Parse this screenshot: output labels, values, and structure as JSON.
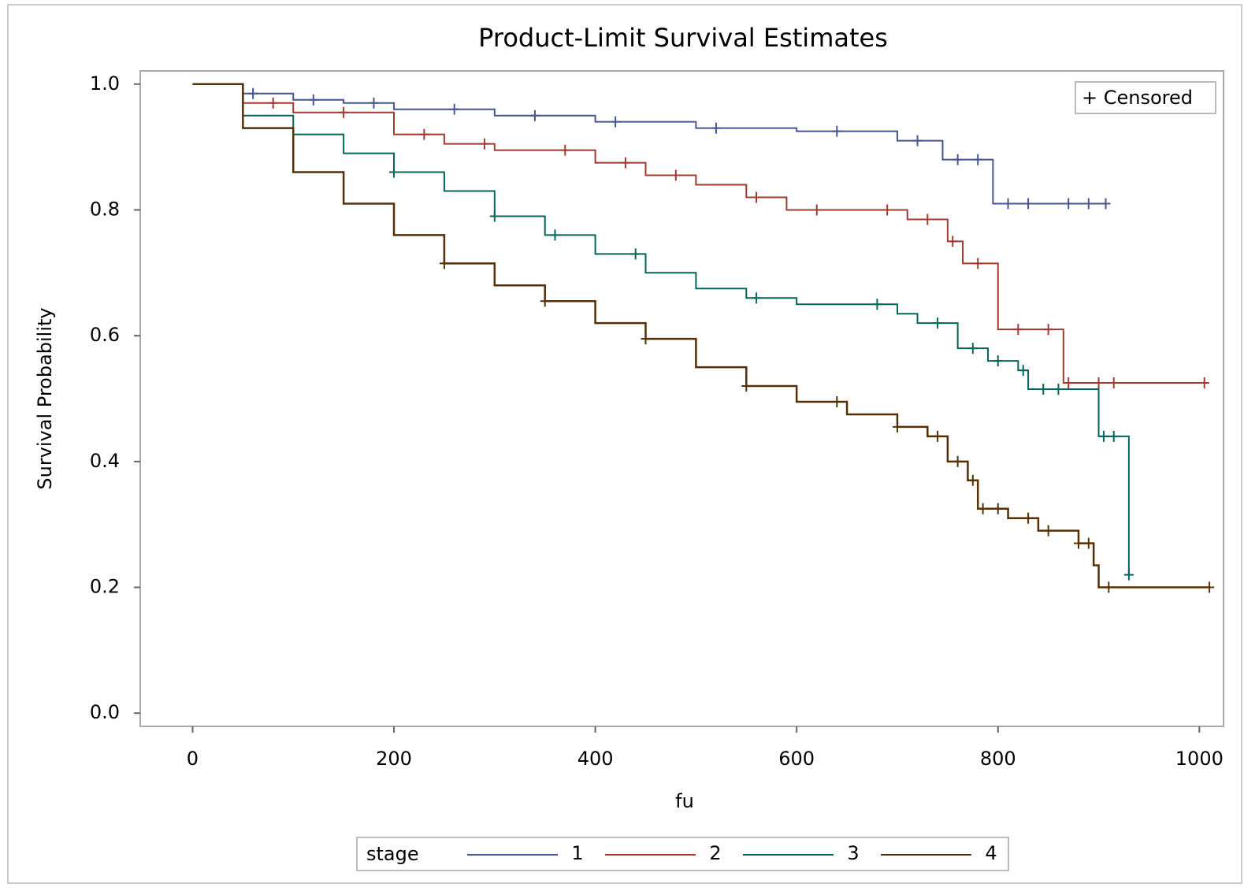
{
  "chart_data": {
    "type": "step-survival",
    "title": "Product-Limit Survival Estimates",
    "x_label": "fu",
    "y_label": "Survival Probability",
    "xlim": [
      -52,
      1024
    ],
    "ylim": [
      -0.021,
      1.021
    ],
    "xticks": [
      0,
      200,
      400,
      600,
      800,
      1000
    ],
    "yticks": [
      {
        "value": 0,
        "label": "0.0"
      },
      {
        "value": 0.2,
        "label": "0.2"
      },
      {
        "value": 0.4,
        "label": "0.4"
      },
      {
        "value": 0.6,
        "label": "0.6"
      },
      {
        "value": 0.8,
        "label": "0.8"
      },
      {
        "value": 1,
        "label": "1.0"
      }
    ],
    "censor_legend": "+ Censored",
    "legend_title": "stage",
    "series": [
      {
        "name": "1",
        "color": "#445694",
        "x": [
          0,
          50,
          100,
          150,
          200,
          300,
          400,
          500,
          600,
          700,
          745,
          795,
          907
        ],
        "values": [
          1.0,
          0.985,
          0.975,
          0.97,
          0.96,
          0.95,
          0.94,
          0.93,
          0.925,
          0.91,
          0.88,
          0.81,
          0.81
        ],
        "censored_x": [
          60,
          120,
          180,
          260,
          340,
          420,
          520,
          640,
          720,
          760,
          780,
          810,
          830,
          870,
          890,
          907
        ]
      },
      {
        "name": "2",
        "color": "#a23a2e",
        "x": [
          0,
          50,
          100,
          200,
          250,
          300,
          400,
          450,
          500,
          550,
          590,
          710,
          750,
          765,
          800,
          865,
          1005
        ],
        "values": [
          1.0,
          0.97,
          0.955,
          0.92,
          0.905,
          0.895,
          0.875,
          0.855,
          0.84,
          0.82,
          0.8,
          0.785,
          0.75,
          0.715,
          0.61,
          0.525,
          0.525
        ],
        "censored_x": [
          80,
          150,
          230,
          290,
          370,
          430,
          480,
          560,
          620,
          690,
          730,
          755,
          780,
          820,
          850,
          870,
          900,
          915,
          1005
        ]
      },
      {
        "name": "3",
        "color": "#01665e",
        "x": [
          0,
          50,
          100,
          150,
          200,
          250,
          300,
          350,
          400,
          450,
          500,
          550,
          600,
          700,
          720,
          760,
          790,
          820,
          830,
          900,
          930
        ],
        "values": [
          1.0,
          0.95,
          0.92,
          0.89,
          0.86,
          0.83,
          0.79,
          0.76,
          0.73,
          0.7,
          0.675,
          0.66,
          0.65,
          0.635,
          0.62,
          0.58,
          0.56,
          0.545,
          0.515,
          0.44,
          0.22
        ],
        "censored_x": [
          200,
          300,
          360,
          440,
          560,
          680,
          740,
          775,
          800,
          825,
          845,
          860,
          905,
          915,
          930
        ]
      },
      {
        "name": "4",
        "color": "#543005",
        "x": [
          0,
          50,
          100,
          150,
          200,
          250,
          300,
          350,
          400,
          450,
          500,
          550,
          600,
          650,
          700,
          730,
          750,
          770,
          780,
          810,
          840,
          880,
          895,
          900,
          1010
        ],
        "values": [
          1.0,
          0.93,
          0.86,
          0.81,
          0.76,
          0.715,
          0.68,
          0.655,
          0.62,
          0.595,
          0.55,
          0.52,
          0.495,
          0.475,
          0.455,
          0.44,
          0.4,
          0.37,
          0.325,
          0.31,
          0.29,
          0.27,
          0.235,
          0.2,
          0.2
        ],
        "censored_x": [
          250,
          350,
          450,
          550,
          640,
          700,
          740,
          760,
          775,
          785,
          800,
          830,
          850,
          880,
          890,
          910,
          1010
        ]
      }
    ]
  }
}
